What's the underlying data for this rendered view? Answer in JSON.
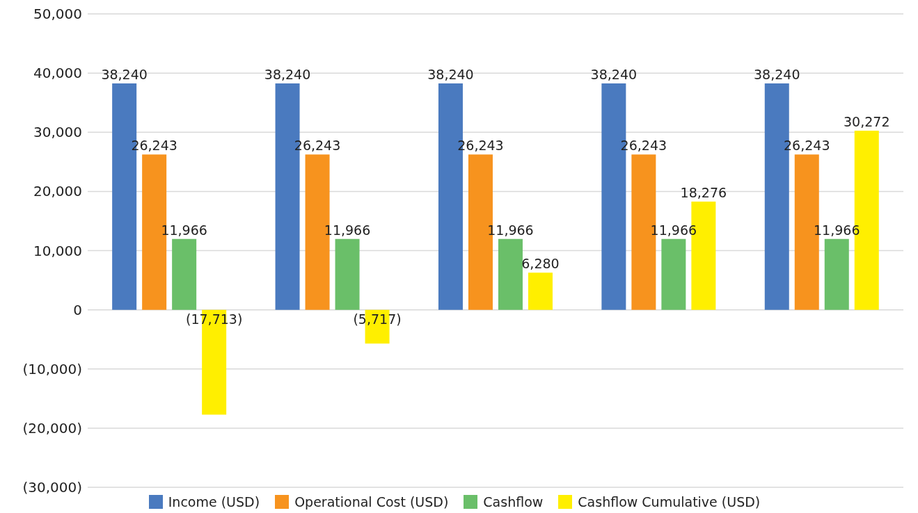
{
  "chart_data": {
    "type": "bar",
    "categories": [
      null,
      null,
      null,
      null,
      null
    ],
    "series": [
      {
        "name": "Income (USD)",
        "color": "#4a7abf",
        "values": [
          38240,
          38240,
          38240,
          38240,
          38240
        ],
        "value_labels": [
          "38,240",
          "38,240",
          "38,240",
          "38,240",
          "38,240"
        ]
      },
      {
        "name": "Operational Cost (USD)",
        "color": "#f7931e",
        "values": [
          26243,
          26243,
          26243,
          26243,
          26243
        ],
        "value_labels": [
          "26,243",
          "26,243",
          "26,243",
          "26,243",
          "26,243"
        ]
      },
      {
        "name": "Cashflow",
        "color": "#6abf69",
        "values": [
          11966,
          11966,
          11966,
          11966,
          11966
        ],
        "value_labels": [
          "11,966",
          "11,966",
          "11,966",
          "11,966",
          "11,966"
        ]
      },
      {
        "name": "Cashflow Cumulative (USD)",
        "color": "#ffef00",
        "values": [
          -17713,
          -5717,
          6280,
          18276,
          30272
        ],
        "value_labels": [
          "(17,713)",
          "(5,717)",
          "6,280",
          "18,276",
          "30,272"
        ]
      }
    ],
    "ylim": [
      -30000,
      50000
    ],
    "yticks": [
      {
        "value": -30000,
        "label": "(30,000)"
      },
      {
        "value": -20000,
        "label": "(20,000)"
      },
      {
        "value": -10000,
        "label": "(10,000)"
      },
      {
        "value": 0,
        "label": "0"
      },
      {
        "value": 10000,
        "label": "10,000"
      },
      {
        "value": 20000,
        "label": "20,000"
      },
      {
        "value": 30000,
        "label": "30,000"
      },
      {
        "value": 40000,
        "label": "40,000"
      },
      {
        "value": 50000,
        "label": "50,000"
      }
    ],
    "grid": "y",
    "legend": "bottom"
  }
}
